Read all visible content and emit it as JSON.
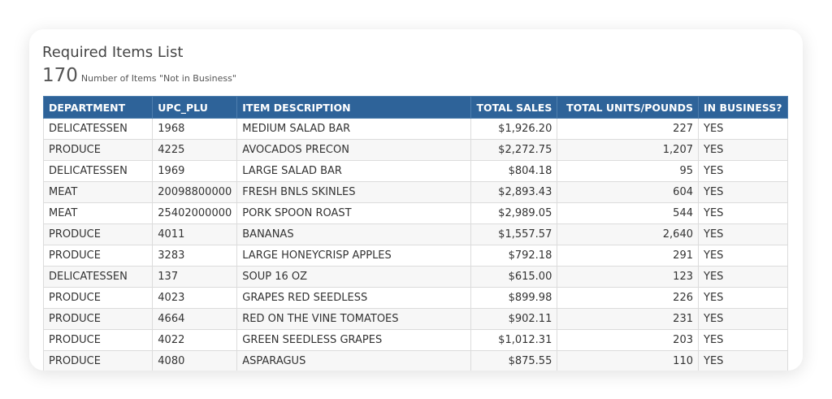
{
  "title": "Required Items List",
  "count": "170",
  "count_label": "Number of Items \"Not in Business\"",
  "colors": {
    "header": "#2e6399"
  },
  "columns": [
    "DEPARTMENT",
    "UPC_PLU",
    "ITEM DESCRIPTION",
    "TOTAL SALES",
    "TOTAL UNITS/POUNDS",
    "IN BUSINESS?"
  ],
  "rows": [
    [
      "DELICATESSEN",
      "1968",
      "MEDIUM SALAD BAR",
      "$1,926.20",
      "227",
      "YES"
    ],
    [
      "PRODUCE",
      "4225",
      "AVOCADOS PRECON",
      "$2,272.75",
      "1,207",
      "YES"
    ],
    [
      "DELICATESSEN",
      "1969",
      "LARGE SALAD BAR",
      "$804.18",
      "95",
      "YES"
    ],
    [
      "MEAT",
      "20098800000",
      "FRESH BNLS SKINLES",
      "$2,893.43",
      "604",
      "YES"
    ],
    [
      "MEAT",
      "25402000000",
      "PORK SPOON ROAST",
      "$2,989.05",
      "544",
      "YES"
    ],
    [
      "PRODUCE",
      "4011",
      "BANANAS",
      "$1,557.57",
      "2,640",
      "YES"
    ],
    [
      "PRODUCE",
      "3283",
      "LARGE HONEYCRISP APPLES",
      "$792.18",
      "291",
      "YES"
    ],
    [
      "DELICATESSEN",
      "137",
      "SOUP 16 OZ",
      "$615.00",
      "123",
      "YES"
    ],
    [
      "PRODUCE",
      "4023",
      "GRAPES RED SEEDLESS",
      "$899.98",
      "226",
      "YES"
    ],
    [
      "PRODUCE",
      "4664",
      "RED ON THE VINE TOMATOES",
      "$902.11",
      "231",
      "YES"
    ],
    [
      "PRODUCE",
      "4022",
      "GREEN SEEDLESS GRAPES",
      "$1,012.31",
      "203",
      "YES"
    ],
    [
      "PRODUCE",
      "4080",
      "ASPARAGUS",
      "$875.55",
      "110",
      "YES"
    ]
  ]
}
